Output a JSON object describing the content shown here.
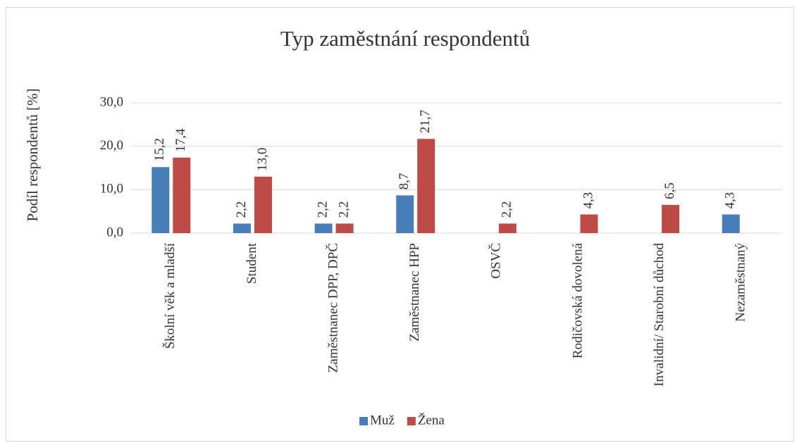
{
  "chart_data": {
    "type": "bar",
    "title": "Typ zaměstnání respondentů",
    "y_label": "Podíl respondentů [%]",
    "categories": [
      "Školní věk a mladší",
      "Student",
      "Zaměstnanec DPP, DPČ",
      "Zaměstnanec HPP",
      "OSVČ",
      "Rodičovská dovolená",
      "Invalidní/ Starobní důchod",
      "Nezaměstnaný"
    ],
    "series": [
      {
        "name": "Muž",
        "color": "#4a7ebb",
        "values": [
          15.2,
          2.2,
          2.2,
          8.7,
          null,
          null,
          null,
          4.3
        ],
        "value_labels": [
          "15,2",
          "2,2",
          "2,2",
          "8,7",
          null,
          null,
          null,
          "4,3"
        ]
      },
      {
        "name": "Žena",
        "color": "#be4b48",
        "values": [
          17.4,
          13.0,
          2.2,
          21.7,
          2.2,
          4.3,
          6.5,
          null
        ],
        "value_labels": [
          "17,4",
          "13,0",
          "2,2",
          "21,7",
          "2,2",
          "4,3",
          "6,5",
          null
        ]
      }
    ],
    "ylim": [
      0,
      30
    ],
    "yticks": [
      {
        "value": 0,
        "label": "0,0"
      },
      {
        "value": 10,
        "label": "10,0"
      },
      {
        "value": 20,
        "label": "20,0"
      },
      {
        "value": 30,
        "label": "30,0"
      }
    ],
    "grid": true,
    "legend": "bottom"
  }
}
